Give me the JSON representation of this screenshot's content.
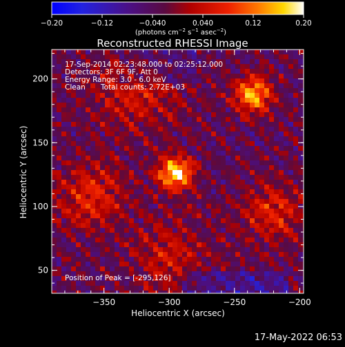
{
  "colors": {
    "background": "#000000",
    "text": "#ffffff"
  },
  "colorbar": {
    "ticks": [
      "-0.20",
      "-0.12",
      "-0.040",
      "0.040",
      "0.12",
      "0.20"
    ],
    "units": "(photons cm-2 s-1 asec-2)",
    "range": [
      -0.2,
      0.2
    ]
  },
  "title": "Reconstructed RHESSI Image",
  "annotations": {
    "time_range": "17-Sep-2014 02:23:48.000 to 02:25:12.000",
    "detectors": "Detectors: 3F 6F 9F, Att 0",
    "energy": "Energy Range: 3.0 - 6.0 keV",
    "clean_label": "Clean",
    "total_counts": "Total counts: 2.72E+03",
    "peak": "Position of Peak = [-295,126]"
  },
  "footer_timestamp": "17-May-2022 06:53",
  "chart_data": {
    "type": "heatmap",
    "title": "Reconstructed RHESSI Image",
    "xlabel": "Heliocentric X (arcsec)",
    "ylabel": "Heliocentric Y (arcsec)",
    "xlim": [
      -390,
      -197
    ],
    "ylim": [
      32,
      223
    ],
    "x_ticks": [
      -350,
      -300,
      -250,
      -200
    ],
    "y_ticks": [
      50,
      100,
      150,
      200
    ],
    "colorbar_range": [
      -0.2,
      0.2
    ],
    "sources": [
      {
        "x": -295,
        "y": 126,
        "rel_intensity": 1.0,
        "width_arcsec": 9
      },
      {
        "x": -236,
        "y": 188,
        "rel_intensity": 0.8,
        "width_arcsec": 10
      },
      {
        "x": -360,
        "y": 108,
        "rel_intensity": 0.42,
        "width_arcsec": 18
      },
      {
        "x": -325,
        "y": 190,
        "rel_intensity": 0.35,
        "width_arcsec": 22
      },
      {
        "x": -220,
        "y": 95,
        "rel_intensity": 0.4,
        "width_arcsec": 16
      },
      {
        "x": -300,
        "y": 60,
        "rel_intensity": 0.3,
        "width_arcsec": 20
      }
    ]
  }
}
